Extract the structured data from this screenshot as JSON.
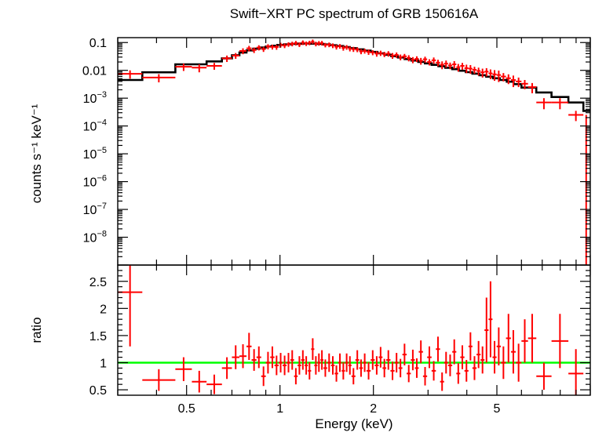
{
  "title": "Swift−XRT PC spectrum of GRB 150616A",
  "colors": {
    "data": "#ff0000",
    "model": "#000000",
    "unity": "#00ff00",
    "axis": "#000000"
  },
  "chart_data": [
    {
      "type": "scatter",
      "panel": "spectrum",
      "ylabel": "counts s⁻¹ keV⁻¹",
      "yscale": "log",
      "xscale": "log",
      "xlim": [
        0.3,
        10
      ],
      "ylim": [
        1e-09,
        0.15
      ],
      "yticks": [
        {
          "value": 0.1,
          "label": "0.1"
        },
        {
          "value": 0.01,
          "label": "0.01"
        },
        {
          "value": 0.001,
          "base": "10",
          "exp": "−3"
        },
        {
          "value": 0.0001,
          "base": "10",
          "exp": "−4"
        },
        {
          "value": 1e-05,
          "base": "10",
          "exp": "−5"
        },
        {
          "value": 1e-06,
          "base": "10",
          "exp": "−6"
        },
        {
          "value": 1e-07,
          "base": "10",
          "exp": "−7"
        },
        {
          "value": 1e-08,
          "base": "10",
          "exp": "−8"
        }
      ],
      "points": [
        [
          0.3,
          0.36,
          0.0075,
          0.0025
        ],
        [
          0.36,
          0.46,
          0.0055,
          0.0018
        ],
        [
          0.46,
          0.52,
          0.0135,
          0.004
        ],
        [
          0.52,
          0.58,
          0.0125,
          0.004
        ],
        [
          0.58,
          0.65,
          0.0145,
          0.004
        ],
        [
          0.65,
          0.7,
          0.027,
          0.007
        ],
        [
          0.7,
          0.74,
          0.034,
          0.008
        ],
        [
          0.74,
          0.78,
          0.05,
          0.012
        ],
        [
          0.78,
          0.81,
          0.062,
          0.014
        ],
        [
          0.81,
          0.84,
          0.054,
          0.012
        ],
        [
          0.84,
          0.87,
          0.066,
          0.014
        ],
        [
          0.87,
          0.9,
          0.058,
          0.012
        ],
        [
          0.9,
          0.93,
          0.072,
          0.015
        ],
        [
          0.93,
          0.96,
          0.07,
          0.014
        ],
        [
          0.96,
          0.99,
          0.069,
          0.014
        ],
        [
          0.99,
          1.02,
          0.082,
          0.016
        ],
        [
          1.02,
          1.05,
          0.078,
          0.015
        ],
        [
          1.05,
          1.08,
          0.086,
          0.016
        ],
        [
          1.08,
          1.11,
          0.09,
          0.017
        ],
        [
          1.11,
          1.14,
          0.096,
          0.018
        ],
        [
          1.14,
          1.17,
          0.085,
          0.016
        ],
        [
          1.17,
          1.2,
          0.1,
          0.019
        ],
        [
          1.2,
          1.23,
          0.092,
          0.017
        ],
        [
          1.23,
          1.26,
          0.098,
          0.018
        ],
        [
          1.26,
          1.29,
          0.108,
          0.02
        ],
        [
          1.29,
          1.32,
          0.09,
          0.017
        ],
        [
          1.32,
          1.35,
          0.095,
          0.018
        ],
        [
          1.35,
          1.38,
          0.096,
          0.018
        ],
        [
          1.38,
          1.42,
          0.082,
          0.015
        ],
        [
          1.42,
          1.46,
          0.084,
          0.016
        ],
        [
          1.46,
          1.5,
          0.078,
          0.015
        ],
        [
          1.5,
          1.54,
          0.07,
          0.014
        ],
        [
          1.54,
          1.58,
          0.074,
          0.014
        ],
        [
          1.58,
          1.62,
          0.064,
          0.013
        ],
        [
          1.62,
          1.66,
          0.068,
          0.013
        ],
        [
          1.66,
          1.7,
          0.06,
          0.012
        ],
        [
          1.7,
          1.75,
          0.058,
          0.012
        ],
        [
          1.75,
          1.8,
          0.056,
          0.011
        ],
        [
          1.8,
          1.85,
          0.048,
          0.01
        ],
        [
          1.85,
          1.9,
          0.05,
          0.01
        ],
        [
          1.9,
          1.96,
          0.046,
          0.01
        ],
        [
          1.96,
          2.02,
          0.044,
          0.009
        ],
        [
          2.02,
          2.08,
          0.04,
          0.009
        ],
        [
          2.08,
          2.14,
          0.042,
          0.009
        ],
        [
          2.14,
          2.2,
          0.038,
          0.008
        ],
        [
          2.2,
          2.27,
          0.04,
          0.009
        ],
        [
          2.27,
          2.34,
          0.034,
          0.008
        ],
        [
          2.34,
          2.41,
          0.036,
          0.008
        ],
        [
          2.41,
          2.48,
          0.03,
          0.007
        ],
        [
          2.48,
          2.56,
          0.032,
          0.007
        ],
        [
          2.56,
          2.64,
          0.028,
          0.007
        ],
        [
          2.64,
          2.72,
          0.024,
          0.006
        ],
        [
          2.72,
          2.8,
          0.026,
          0.006
        ],
        [
          2.8,
          2.89,
          0.022,
          0.006
        ],
        [
          2.89,
          2.98,
          0.025,
          0.006
        ],
        [
          2.98,
          3.08,
          0.02,
          0.005
        ],
        [
          3.08,
          3.18,
          0.023,
          0.006
        ],
        [
          3.18,
          3.28,
          0.019,
          0.005
        ],
        [
          3.28,
          3.38,
          0.016,
          0.005
        ],
        [
          3.38,
          3.48,
          0.0175,
          0.005
        ],
        [
          3.48,
          3.59,
          0.015,
          0.004
        ],
        [
          3.59,
          3.7,
          0.0165,
          0.005
        ],
        [
          3.7,
          3.81,
          0.013,
          0.004
        ],
        [
          3.81,
          3.93,
          0.0145,
          0.004
        ],
        [
          3.93,
          4.05,
          0.012,
          0.004
        ],
        [
          4.05,
          4.17,
          0.0115,
          0.004
        ],
        [
          4.17,
          4.3,
          0.0105,
          0.003
        ],
        [
          4.3,
          4.43,
          0.0095,
          0.003
        ],
        [
          4.43,
          4.56,
          0.0085,
          0.003
        ],
        [
          4.56,
          4.7,
          0.009,
          0.003
        ],
        [
          4.7,
          4.84,
          0.0078,
          0.003
        ],
        [
          4.84,
          4.99,
          0.0072,
          0.003
        ],
        [
          4.99,
          5.15,
          0.0068,
          0.003
        ],
        [
          5.15,
          5.35,
          0.006,
          0.002
        ],
        [
          5.35,
          5.55,
          0.0052,
          0.002
        ],
        [
          5.55,
          5.75,
          0.0045,
          0.002
        ],
        [
          5.75,
          6.0,
          0.004,
          0.0015
        ],
        [
          6.0,
          6.3,
          0.0033,
          0.0012
        ],
        [
          6.3,
          6.7,
          0.0025,
          0.001
        ],
        [
          6.7,
          7.5,
          0.0007,
          0.0003
        ],
        [
          7.5,
          8.5,
          0.0007,
          0.0003
        ],
        [
          8.5,
          9.5,
          0.00025,
          0.0001
        ]
      ],
      "model_steps": [
        [
          0.3,
          0.36,
          0.0045
        ],
        [
          0.36,
          0.46,
          0.0085
        ],
        [
          0.46,
          0.58,
          0.0165
        ],
        [
          0.58,
          0.65,
          0.021
        ],
        [
          0.65,
          0.7,
          0.027
        ],
        [
          0.7,
          0.74,
          0.035
        ],
        [
          0.74,
          0.78,
          0.044
        ],
        [
          0.78,
          0.82,
          0.052
        ],
        [
          0.82,
          0.86,
          0.06
        ],
        [
          0.86,
          0.9,
          0.066
        ],
        [
          0.9,
          0.94,
          0.072
        ],
        [
          0.94,
          0.98,
          0.077
        ],
        [
          0.98,
          1.03,
          0.082
        ],
        [
          1.03,
          1.08,
          0.086
        ],
        [
          1.08,
          1.13,
          0.089
        ],
        [
          1.13,
          1.19,
          0.091
        ],
        [
          1.19,
          1.25,
          0.092
        ],
        [
          1.25,
          1.31,
          0.091
        ],
        [
          1.31,
          1.38,
          0.089
        ],
        [
          1.38,
          1.45,
          0.085
        ],
        [
          1.45,
          1.52,
          0.08
        ],
        [
          1.52,
          1.6,
          0.075
        ],
        [
          1.6,
          1.68,
          0.069
        ],
        [
          1.68,
          1.77,
          0.063
        ],
        [
          1.77,
          1.86,
          0.057
        ],
        [
          1.86,
          1.96,
          0.051
        ],
        [
          1.96,
          2.06,
          0.046
        ],
        [
          2.06,
          2.17,
          0.041
        ],
        [
          2.17,
          2.28,
          0.0365
        ],
        [
          2.28,
          2.4,
          0.0325
        ],
        [
          2.4,
          2.52,
          0.029
        ],
        [
          2.52,
          2.65,
          0.0255
        ],
        [
          2.65,
          2.79,
          0.0225
        ],
        [
          2.79,
          2.93,
          0.02
        ],
        [
          2.93,
          3.08,
          0.0178
        ],
        [
          3.08,
          3.24,
          0.0158
        ],
        [
          3.24,
          3.41,
          0.014
        ],
        [
          3.41,
          3.59,
          0.0124
        ],
        [
          3.59,
          3.77,
          0.011
        ],
        [
          3.77,
          3.97,
          0.0097
        ],
        [
          3.97,
          4.17,
          0.0086
        ],
        [
          4.17,
          4.39,
          0.0076
        ],
        [
          4.39,
          4.62,
          0.0067
        ],
        [
          4.62,
          4.86,
          0.0059
        ],
        [
          4.86,
          5.11,
          0.0052
        ],
        [
          5.11,
          5.38,
          0.0045
        ],
        [
          5.38,
          5.66,
          0.0039
        ],
        [
          5.66,
          6.0,
          0.0032
        ],
        [
          6.0,
          6.7,
          0.0024
        ],
        [
          6.7,
          7.5,
          0.0016
        ],
        [
          7.5,
          8.5,
          0.0011
        ],
        [
          8.5,
          9.5,
          0.0007
        ],
        [
          9.5,
          10.0,
          0.00035
        ]
      ]
    },
    {
      "type": "scatter",
      "panel": "ratio",
      "xlabel": "Energy (keV)",
      "ylabel": "ratio",
      "xscale": "log",
      "xlim": [
        0.3,
        10
      ],
      "ylim": [
        0.4,
        2.8
      ],
      "unity_line": 1,
      "yticks": [
        {
          "value": 0.5,
          "label": "0.5"
        },
        {
          "value": 1,
          "label": "1"
        },
        {
          "value": 1.5,
          "label": "1.5"
        },
        {
          "value": 2,
          "label": "2"
        },
        {
          "value": 2.5,
          "label": "2.5"
        }
      ],
      "xticks": [
        {
          "value": 0.5,
          "label": "0.5"
        },
        {
          "value": 1,
          "label": "1"
        },
        {
          "value": 2,
          "label": "2"
        },
        {
          "value": 5,
          "label": "5"
        }
      ],
      "points": [
        [
          0.3,
          0.36,
          2.3,
          1.0
        ],
        [
          0.36,
          0.46,
          0.68,
          0.2
        ],
        [
          0.46,
          0.52,
          0.88,
          0.22
        ],
        [
          0.52,
          0.58,
          0.65,
          0.2
        ],
        [
          0.58,
          0.65,
          0.6,
          0.18
        ],
        [
          0.65,
          0.7,
          0.9,
          0.2
        ],
        [
          0.7,
          0.74,
          1.1,
          0.22
        ],
        [
          0.74,
          0.78,
          1.12,
          0.22
        ],
        [
          0.78,
          0.81,
          1.3,
          0.25
        ],
        [
          0.81,
          0.84,
          1.05,
          0.2
        ],
        [
          0.84,
          0.87,
          1.1,
          0.2
        ],
        [
          0.87,
          0.9,
          0.75,
          0.18
        ],
        [
          0.9,
          0.93,
          1.0,
          0.2
        ],
        [
          0.93,
          0.96,
          1.1,
          0.2
        ],
        [
          0.96,
          0.99,
          0.95,
          0.18
        ],
        [
          0.99,
          1.02,
          1.0,
          0.18
        ],
        [
          1.02,
          1.05,
          0.95,
          0.18
        ],
        [
          1.05,
          1.08,
          1.0,
          0.18
        ],
        [
          1.08,
          1.11,
          1.05,
          0.18
        ],
        [
          1.11,
          1.14,
          0.75,
          0.15
        ],
        [
          1.14,
          1.17,
          0.95,
          0.17
        ],
        [
          1.17,
          1.2,
          1.05,
          0.18
        ],
        [
          1.2,
          1.23,
          0.95,
          0.17
        ],
        [
          1.23,
          1.26,
          0.85,
          0.16
        ],
        [
          1.26,
          1.29,
          1.25,
          0.2
        ],
        [
          1.29,
          1.32,
          0.95,
          0.17
        ],
        [
          1.32,
          1.35,
          1.0,
          0.17
        ],
        [
          1.35,
          1.38,
          1.05,
          0.18
        ],
        [
          1.38,
          1.42,
          0.9,
          0.16
        ],
        [
          1.42,
          1.46,
          1.0,
          0.17
        ],
        [
          1.46,
          1.5,
          0.95,
          0.17
        ],
        [
          1.5,
          1.54,
          0.8,
          0.15
        ],
        [
          1.54,
          1.58,
          1.0,
          0.17
        ],
        [
          1.58,
          1.62,
          0.85,
          0.16
        ],
        [
          1.62,
          1.66,
          1.0,
          0.17
        ],
        [
          1.66,
          1.7,
          0.95,
          0.17
        ],
        [
          1.7,
          1.75,
          0.75,
          0.15
        ],
        [
          1.75,
          1.8,
          1.05,
          0.18
        ],
        [
          1.8,
          1.85,
          0.9,
          0.16
        ],
        [
          1.85,
          1.9,
          1.0,
          0.17
        ],
        [
          1.9,
          1.96,
          0.85,
          0.16
        ],
        [
          1.96,
          2.02,
          1.05,
          0.18
        ],
        [
          2.02,
          2.08,
          0.95,
          0.17
        ],
        [
          2.08,
          2.14,
          1.1,
          0.19
        ],
        [
          2.14,
          2.2,
          0.9,
          0.17
        ],
        [
          2.2,
          2.27,
          1.05,
          0.18
        ],
        [
          2.27,
          2.34,
          0.85,
          0.17
        ],
        [
          2.34,
          2.41,
          1.0,
          0.18
        ],
        [
          2.41,
          2.48,
          0.9,
          0.17
        ],
        [
          2.48,
          2.56,
          1.15,
          0.2
        ],
        [
          2.56,
          2.64,
          0.8,
          0.16
        ],
        [
          2.64,
          2.72,
          1.05,
          0.19
        ],
        [
          2.72,
          2.8,
          0.9,
          0.18
        ],
        [
          2.8,
          2.89,
          1.2,
          0.21
        ],
        [
          2.89,
          2.98,
          0.75,
          0.17
        ],
        [
          2.98,
          3.08,
          1.1,
          0.2
        ],
        [
          3.08,
          3.18,
          0.85,
          0.18
        ],
        [
          3.18,
          3.28,
          1.25,
          0.23
        ],
        [
          3.28,
          3.38,
          0.65,
          0.17
        ],
        [
          3.38,
          3.48,
          1.0,
          0.2
        ],
        [
          3.48,
          3.59,
          0.95,
          0.2
        ],
        [
          3.59,
          3.7,
          1.2,
          0.23
        ],
        [
          3.7,
          3.81,
          0.8,
          0.19
        ],
        [
          3.81,
          3.93,
          1.1,
          0.22
        ],
        [
          3.93,
          4.05,
          0.85,
          0.2
        ],
        [
          4.05,
          4.17,
          1.3,
          0.26
        ],
        [
          4.17,
          4.3,
          0.9,
          0.22
        ],
        [
          4.3,
          4.43,
          1.15,
          0.25
        ],
        [
          4.43,
          4.56,
          1.05,
          0.25
        ],
        [
          4.56,
          4.7,
          1.6,
          0.6
        ],
        [
          4.7,
          4.84,
          1.8,
          0.7
        ],
        [
          4.84,
          4.99,
          1.1,
          0.3
        ],
        [
          4.99,
          5.15,
          1.3,
          0.35
        ],
        [
          5.15,
          5.35,
          1.0,
          0.3
        ],
        [
          5.35,
          5.55,
          1.45,
          0.45
        ],
        [
          5.55,
          5.75,
          1.2,
          0.4
        ],
        [
          5.75,
          6.0,
          1.0,
          0.35
        ],
        [
          6.0,
          6.3,
          1.4,
          0.4
        ],
        [
          6.3,
          6.7,
          1.45,
          0.45
        ],
        [
          6.7,
          7.5,
          0.75,
          0.25
        ],
        [
          7.5,
          8.5,
          1.4,
          0.5
        ],
        [
          8.5,
          9.5,
          0.8,
          0.45
        ]
      ]
    }
  ]
}
